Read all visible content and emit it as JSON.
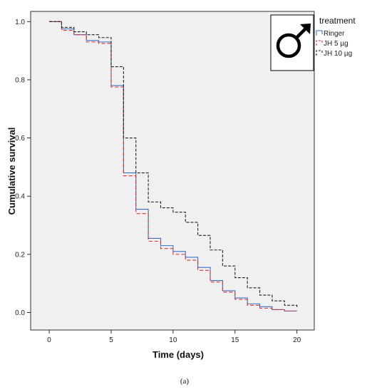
{
  "chart_data": {
    "type": "line",
    "step": true,
    "xlabel": "Time (days)",
    "ylabel": "Cumulative survival",
    "xlim": [
      -1.5,
      21.4
    ],
    "ylim": [
      -0.06,
      1.035
    ],
    "xticks": [
      "0",
      "5",
      "10",
      "15",
      "20"
    ],
    "yticks": [
      "0.0",
      "0.2",
      "0.4",
      "0.6",
      "0.8",
      "1.0"
    ],
    "xtick_values": [
      0,
      5,
      10,
      15,
      20
    ],
    "ytick_values": [
      0.0,
      0.2,
      0.4,
      0.6,
      0.8,
      1.0
    ],
    "grid": false,
    "background": "#f0f0f0",
    "legend": {
      "title": "treatment",
      "placement": "top-right outside plot",
      "entries": [
        "Ringer",
        "JH 5 µg",
        "JH 10 µg"
      ]
    },
    "annotation": "male-symbol",
    "series": [
      {
        "name": "Ringer",
        "color": "#3a6fc9",
        "dash": "solid",
        "x": [
          0,
          1,
          2,
          3,
          4,
          5,
          6,
          7,
          8,
          9,
          10,
          11,
          12,
          13,
          14,
          15,
          16,
          17,
          18,
          19,
          20
        ],
        "y": [
          1.0,
          0.975,
          0.955,
          0.935,
          0.93,
          0.78,
          0.48,
          0.355,
          0.255,
          0.23,
          0.21,
          0.19,
          0.155,
          0.11,
          0.075,
          0.05,
          0.03,
          0.02,
          0.01,
          0.005,
          0.005
        ]
      },
      {
        "name": "JH 5 µg",
        "color": "#e03030",
        "dash": "5,3",
        "x": [
          0,
          1,
          2,
          3,
          4,
          5,
          6,
          7,
          8,
          9,
          10,
          11,
          12,
          13,
          14,
          15,
          16,
          17,
          18,
          19,
          20
        ],
        "y": [
          1.0,
          0.97,
          0.955,
          0.93,
          0.925,
          0.775,
          0.47,
          0.34,
          0.245,
          0.22,
          0.2,
          0.18,
          0.145,
          0.105,
          0.07,
          0.045,
          0.025,
          0.015,
          0.01,
          0.005,
          0.005
        ]
      },
      {
        "name": "JH 10 µg",
        "color": "#222222",
        "dash": "4,2",
        "x": [
          0,
          1,
          2,
          3,
          4,
          5,
          6,
          7,
          8,
          9,
          10,
          11,
          12,
          13,
          14,
          15,
          16,
          17,
          18,
          19,
          20
        ],
        "y": [
          1.0,
          0.98,
          0.965,
          0.955,
          0.945,
          0.845,
          0.6,
          0.48,
          0.38,
          0.36,
          0.345,
          0.31,
          0.265,
          0.215,
          0.16,
          0.12,
          0.085,
          0.06,
          0.04,
          0.025,
          0.015
        ]
      }
    ]
  },
  "caption": "(a)"
}
